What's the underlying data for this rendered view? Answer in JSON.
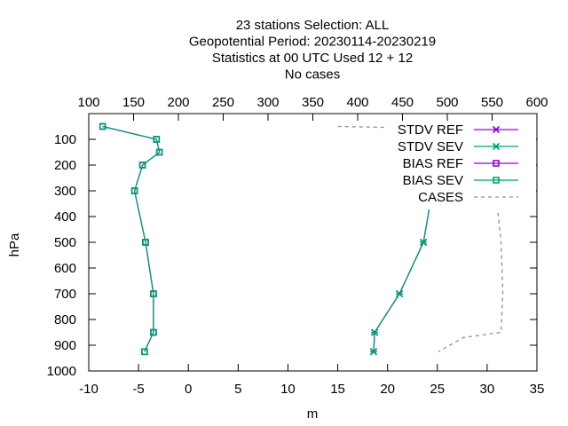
{
  "chart_data": {
    "type": "line",
    "title_lines": [
      "23 stations Selection: ALL",
      "Geopotential  Period: 20230114-20230219",
      "Statistics at 00 UTC  Used  12 + 12",
      "No cases"
    ],
    "xlabel": "m",
    "ylabel": "hPa",
    "xlim": [
      -10,
      35
    ],
    "ylim": [
      1000,
      0
    ],
    "x2lim": [
      100,
      600
    ],
    "x_ticks": [
      -10,
      -5,
      0,
      5,
      10,
      15,
      20,
      25,
      30,
      35
    ],
    "x2_ticks": [
      100,
      150,
      200,
      250,
      300,
      350,
      400,
      450,
      500,
      550,
      600
    ],
    "y_ticks": [
      100,
      200,
      300,
      400,
      500,
      600,
      700,
      800,
      900,
      1000
    ],
    "grid": false,
    "legend_position": "top-right",
    "series": [
      {
        "name": "STDV REF",
        "color": "#9400d3",
        "marker": "x",
        "axis": "x1",
        "x": [
          30.0,
          27.2,
          24.6,
          27.0,
          24.5,
          23.6,
          21.2,
          18.7,
          18.6
        ],
        "y": [
          50,
          100,
          150,
          200,
          300,
          500,
          700,
          850,
          925
        ]
      },
      {
        "name": "STDV SEV",
        "color": "#009e73",
        "marker": "x",
        "axis": "x1",
        "x": [
          30.0,
          27.2,
          24.6,
          27.0,
          24.5,
          23.6,
          21.2,
          18.7,
          18.6
        ],
        "y": [
          50,
          100,
          150,
          200,
          300,
          500,
          700,
          850,
          925
        ]
      },
      {
        "name": "BIAS REF",
        "color": "#9400d3",
        "marker": "square",
        "axis": "x1",
        "x": [
          -8.6,
          -3.2,
          -2.9,
          -4.6,
          -5.4,
          -4.3,
          -3.5,
          -3.5,
          -4.4
        ],
        "y": [
          50,
          100,
          150,
          200,
          300,
          500,
          700,
          850,
          925
        ]
      },
      {
        "name": "BIAS SEV",
        "color": "#009e73",
        "marker": "square",
        "axis": "x1",
        "x": [
          -8.6,
          -3.2,
          -2.9,
          -4.6,
          -5.4,
          -4.3,
          -3.5,
          -3.5,
          -4.4
        ],
        "y": [
          50,
          100,
          150,
          200,
          300,
          500,
          700,
          850,
          925
        ]
      },
      {
        "name": "CASES",
        "color": "#909090",
        "marker": "none",
        "dashed": true,
        "axis": "x2",
        "x": [
          378,
          525,
          555,
          552,
          554,
          560,
          562,
          560,
          518,
          490
        ],
        "y": [
          50,
          60,
          100,
          200,
          300,
          500,
          700,
          850,
          870,
          925
        ]
      }
    ]
  }
}
